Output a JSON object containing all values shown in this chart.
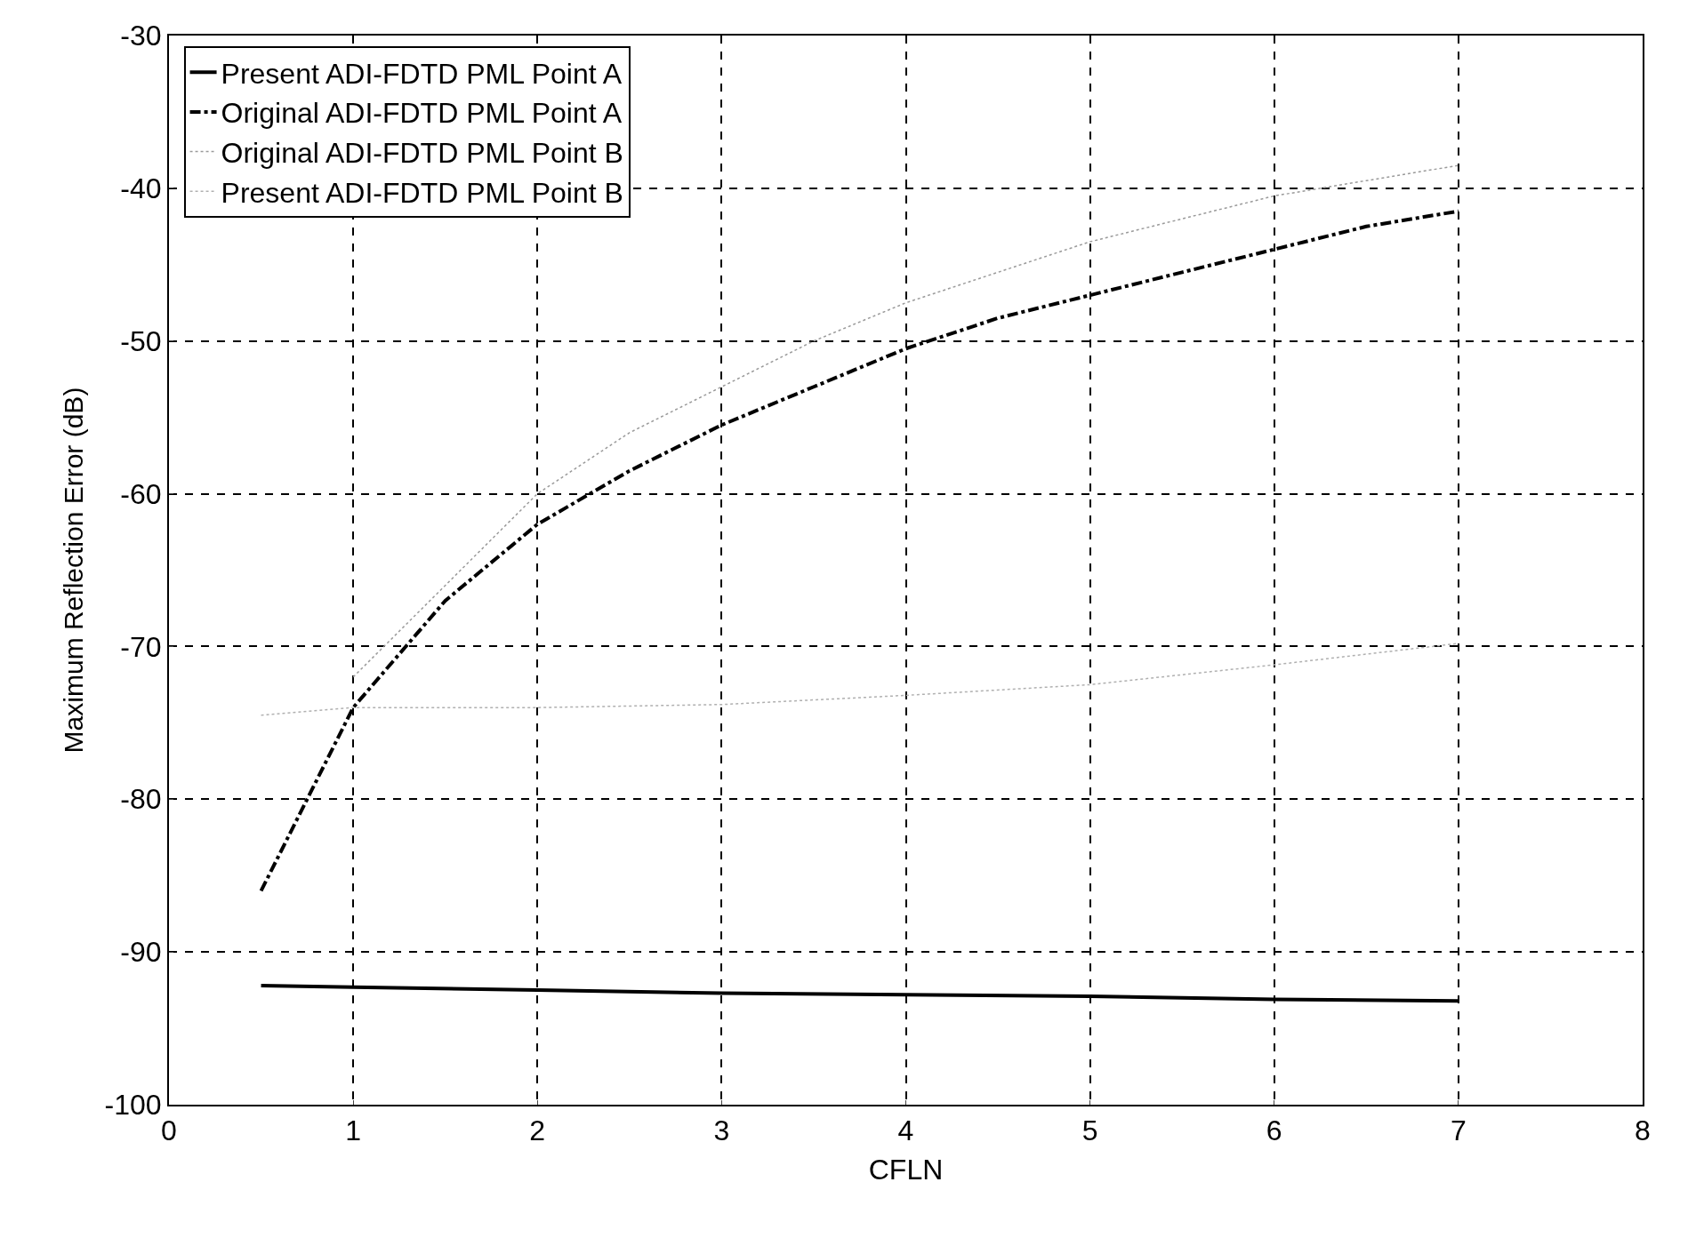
{
  "chart_data": {
    "type": "line",
    "xlabel": "CFLN",
    "ylabel": "Maximum Reflection Error (dB)",
    "xlim": [
      0,
      8
    ],
    "xticks": [
      0,
      1,
      2,
      3,
      4,
      5,
      6,
      7,
      8
    ],
    "ylim": [
      -100,
      -30
    ],
    "yticks": [
      -100,
      -90,
      -80,
      -70,
      -60,
      -50,
      -40,
      -30
    ],
    "grid": true,
    "legend": "top left",
    "marker": "none",
    "series": [
      {
        "name": "Present ADI-FDTD PML Point A",
        "color": "#000000",
        "line_style": "solid",
        "x": [
          0.5,
          1,
          2,
          3,
          4,
          5,
          6,
          7
        ],
        "values": [
          -92.2,
          -92.3,
          -92.5,
          -92.7,
          -92.8,
          -92.9,
          -93.1,
          -93.2
        ]
      },
      {
        "name": "Original ADI-FDTD PML Point A",
        "color": "#000000",
        "line_style": "dashdot",
        "x": [
          0.5,
          1,
          1.5,
          2,
          2.5,
          3,
          3.5,
          4,
          4.5,
          5,
          5.5,
          6,
          6.5,
          7
        ],
        "values": [
          -86,
          -74,
          -67,
          -62,
          -58.5,
          -55.5,
          -53,
          -50.5,
          -48.5,
          -47,
          -45.5,
          -44,
          -42.5,
          -41.5
        ]
      },
      {
        "name": "Original ADI-FDTD PML Point B",
        "color": "#9a9a9a",
        "line_style": "dotted",
        "x": [
          1,
          1.5,
          2,
          2.5,
          3,
          3.5,
          4,
          4.5,
          5,
          5.5,
          6,
          6.5,
          7
        ],
        "values": [
          -72,
          -66,
          -60,
          -56,
          -53,
          -50,
          -47.5,
          -45.5,
          -43.5,
          -42,
          -40.5,
          -39.5,
          -38.5
        ]
      },
      {
        "name": "Present ADI-FDTD PML Point B",
        "color": "#b0b0b0",
        "line_style": "dotted",
        "x": [
          0.5,
          1,
          2,
          3,
          4,
          5,
          6,
          7
        ],
        "values": [
          -74.5,
          -74,
          -74,
          -73.8,
          -73.2,
          -72.5,
          -71.2,
          -69.8
        ]
      }
    ]
  }
}
